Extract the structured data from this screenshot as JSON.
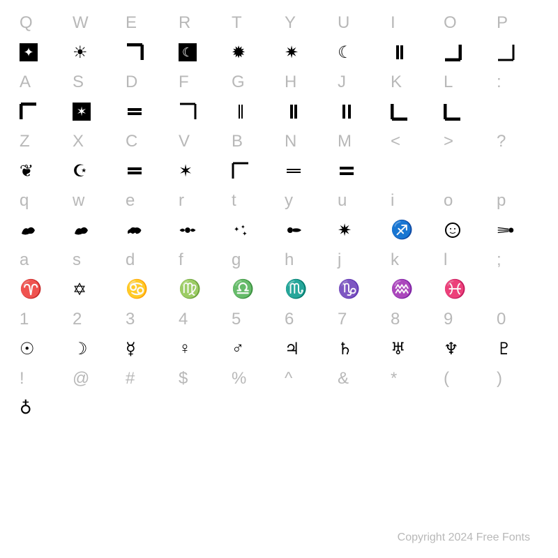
{
  "background_color": "#ffffff",
  "key_color": "#b8b8b8",
  "glyph_color": "#000000",
  "key_fontsize": 24,
  "glyph_fontsize": 22,
  "copyright": "Copyright 2024 Free Fonts",
  "rows": [
    {
      "type": "key",
      "cells": [
        "Q",
        "W",
        "E",
        "R",
        "T",
        "Y",
        "U",
        "I",
        "O",
        "P"
      ]
    },
    {
      "type": "glyph",
      "cells": [
        "star-box",
        "sun-ornate",
        "corner-tr",
        "moon-box",
        "starburst",
        "star-outline",
        "crescent",
        "bar-double-v",
        "corner-br",
        "corner-br-thin"
      ]
    },
    {
      "type": "key",
      "cells": [
        "A",
        "S",
        "D",
        "F",
        "G",
        "H",
        "J",
        "K",
        "L",
        ":"
      ]
    },
    {
      "type": "glyph",
      "cells": [
        "corner-tl",
        "star-box-6",
        "bar-double-h",
        "corner-tr-thin",
        "bar-double-v-thin",
        "bar-double-v",
        "bar-double-v-wide",
        "corner-bl",
        "corner-bl-thick",
        ""
      ]
    },
    {
      "type": "key",
      "cells": [
        "Z",
        "X",
        "C",
        "V",
        "B",
        "N",
        "M",
        "<",
        ">",
        "?"
      ]
    },
    {
      "type": "glyph",
      "cells": [
        "heart-flame",
        "moon-star",
        "bar-double-h",
        "star-6",
        "corner-tl-thin",
        "bar-double-h-thin",
        "bar-double-h-wide",
        "",
        "",
        ""
      ]
    },
    {
      "type": "key",
      "cells": [
        "q",
        "w",
        "e",
        "r",
        "t",
        "y",
        "u",
        "i",
        "o",
        "p"
      ]
    },
    {
      "type": "glyph",
      "cells": [
        "griffin",
        "lion-tail",
        "lion",
        "cherub",
        "stars-cluster",
        "comet-tail",
        "star-8",
        "sagittarius",
        "sun-face",
        "comet"
      ]
    },
    {
      "type": "key",
      "cells": [
        "a",
        "s",
        "d",
        "f",
        "g",
        "h",
        "j",
        "k",
        "l",
        ";"
      ]
    },
    {
      "type": "glyph",
      "cells": [
        "aries",
        "star-david",
        "cancer",
        "virgo",
        "libra",
        "scorpio",
        "capricorn",
        "aquarius",
        "pisces",
        ""
      ]
    },
    {
      "type": "key",
      "cells": [
        "1",
        "2",
        "3",
        "4",
        "5",
        "6",
        "7",
        "8",
        "9",
        "0"
      ]
    },
    {
      "type": "glyph",
      "cells": [
        "sun-sym",
        "moon-sym",
        "mercury",
        "venus",
        "mars",
        "jupiter",
        "saturn",
        "uranus",
        "neptune",
        "pluto"
      ]
    },
    {
      "type": "key",
      "cells": [
        "!",
        "@",
        "#",
        "$",
        "%",
        "^",
        "&",
        "*",
        "(",
        ")"
      ]
    },
    {
      "type": "glyph",
      "cells": [
        "earth-sym",
        "",
        "",
        "",
        "",
        "",
        "",
        "",
        "",
        ""
      ]
    }
  ],
  "glyph_svgs": {
    "star-box": "box-star",
    "sun-ornate": "☀",
    "corner-tr": "corner:tr",
    "moon-box": "box-moon",
    "starburst": "✹",
    "star-outline": "✷",
    "crescent": "☾",
    "bar-double-v": "bars:v",
    "corner-br": "corner:br",
    "corner-br-thin": "corner:br:thin",
    "corner-tl": "corner:tl",
    "star-box-6": "box-star6",
    "bar-double-h": "bars:h",
    "corner-tr-thin": "corner:tr:thin",
    "bar-double-v-thin": "bars:v:thin",
    "bar-double-v-wide": "bars:v:wide",
    "corner-bl": "corner:bl",
    "corner-bl-thick": "corner:bl:thick",
    "heart-flame": "❦",
    "moon-star": "☪",
    "star-6": "✶",
    "corner-tl-thin": "corner:tl:thin",
    "bar-double-h-thin": "bars:h:thin",
    "bar-double-h-wide": "bars:h:wide",
    "griffin": "creature",
    "lion-tail": "creature2",
    "lion": "lion",
    "cherub": "cherub",
    "stars-cluster": "cluster",
    "comet-tail": "comettail",
    "star-8": "✷",
    "sagittarius": "♐",
    "sun-face": "☉face",
    "comet": "☄",
    "aries": "♈",
    "star-david": "✡",
    "cancer": "♋",
    "virgo": "♍",
    "libra": "♎",
    "scorpio": "♏",
    "capricorn": "♑",
    "aquarius": "♒",
    "pisces": "♓",
    "sun-sym": "☉",
    "moon-sym": "☽",
    "mercury": "☿",
    "venus": "♀",
    "mars": "♂",
    "jupiter": "♃",
    "saturn": "♄",
    "uranus": "♅",
    "neptune": "♆",
    "pluto": "♇",
    "earth-sym": "♁"
  }
}
